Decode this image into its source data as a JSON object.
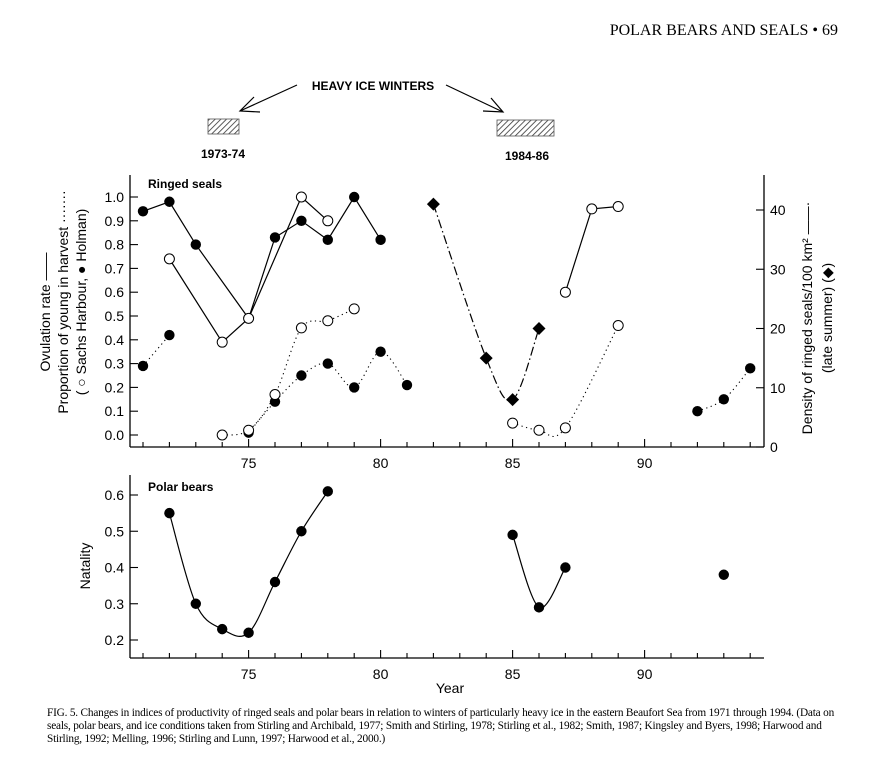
{
  "page_header": "POLAR BEARS AND SEALS • 69",
  "annotations": {
    "heavy_ice_label": "HEAVY ICE WINTERS",
    "periods": [
      {
        "label": "1973-74",
        "start": 73,
        "end": 74
      },
      {
        "label": "1984-86",
        "start": 84,
        "end": 86
      }
    ]
  },
  "caption": "FIG. 5. Changes in indices of productivity of ringed seals and polar bears in relation to winters of particularly heavy ice in the eastern Beaufort Sea from 1971 through 1994. (Data on seals, polar bears, and ice conditions taken from Stirling and Archibald, 1977; Smith and Stirling, 1978; Stirling et al., 1982; Smith, 1987; Kingsley and Byers, 1998; Harwood and Stirling, 1992; Melling, 1996; Stirling and Lunn, 1997; Harwood et al., 2000.)",
  "chart_data": [
    {
      "type": "line",
      "title": "Ringed seals",
      "xlabel": "",
      "ylabel_lines": [
        "Ovulation rate ——",
        "Proportion of young in harvest ·······",
        "( ○ Sachs Harbour, ● Holman)"
      ],
      "y2label_lines": [
        "Density of ringed seals/100 km² ——·",
        "(late summer)  (◆)"
      ],
      "xlim": [
        70.5,
        94.5
      ],
      "ylim": [
        -0.05,
        1.05
      ],
      "y2lim": [
        0,
        45
      ],
      "x_ticks": [
        75,
        80,
        85,
        90
      ],
      "y_ticks": [
        "0.0",
        "0.1",
        "0.2",
        "0.3",
        "0.4",
        "0.5",
        "0.6",
        "0.7",
        "0.8",
        "0.9",
        "1.0"
      ],
      "y2_ticks": [
        "0",
        "10",
        "20",
        "30",
        "40"
      ],
      "grid": false,
      "series": [
        {
          "name": "Ovulation rate (Holman)",
          "marker": "filled-circle",
          "style": "solid",
          "axis": "left",
          "segments": [
            [
              [
                71,
                0.94
              ],
              [
                72,
                0.98
              ],
              [
                73,
                0.8
              ],
              [
                75,
                0.49
              ],
              [
                76,
                0.83
              ],
              [
                77,
                0.9
              ],
              [
                78,
                0.82
              ],
              [
                79,
                1.0
              ],
              [
                80,
                0.82
              ]
            ]
          ]
        },
        {
          "name": "Ovulation rate (Sachs Harbour)",
          "marker": "open-circle",
          "style": "solid",
          "axis": "left",
          "segments": [
            [
              [
                72,
                0.74
              ],
              [
                74,
                0.39
              ],
              [
                75,
                0.49
              ],
              [
                77,
                1.0
              ],
              [
                78,
                0.9
              ]
            ],
            [
              [
                87,
                0.6
              ],
              [
                88,
                0.95
              ],
              [
                89,
                0.96
              ]
            ]
          ]
        },
        {
          "name": "Proportion of young in harvest (Holman)",
          "marker": "filled-circle",
          "style": "dotted",
          "axis": "left",
          "segments": [
            [
              [
                71,
                0.29
              ],
              [
                72,
                0.42
              ]
            ],
            [
              [
                75,
                0.01
              ],
              [
                76,
                0.14
              ],
              [
                77,
                0.25
              ],
              [
                78,
                0.3
              ],
              [
                79,
                0.2
              ],
              [
                80,
                0.35
              ],
              [
                81,
                0.21
              ]
            ],
            [
              [
                92,
                0.1
              ],
              [
                93,
                0.15
              ],
              [
                94,
                0.28
              ]
            ]
          ]
        },
        {
          "name": "Proportion of young in harvest (Sachs Harbour)",
          "marker": "open-circle",
          "style": "dotted",
          "axis": "left",
          "segments": [
            [
              [
                74,
                0.0
              ],
              [
                75,
                0.02
              ],
              [
                76,
                0.17
              ],
              [
                77,
                0.45
              ],
              [
                78,
                0.48
              ],
              [
                79,
                0.53
              ]
            ],
            [
              [
                85,
                0.05
              ],
              [
                86,
                0.02
              ],
              [
                87,
                0.03
              ],
              [
                89,
                0.46
              ]
            ]
          ]
        },
        {
          "name": "Density of ringed seals/100 km² (late summer)",
          "marker": "filled-diamond",
          "style": "dash-dot",
          "axis": "right",
          "segments": [
            [
              [
                82,
                41
              ],
              [
                84,
                15
              ],
              [
                85,
                8
              ],
              [
                86,
                20
              ]
            ]
          ]
        }
      ]
    },
    {
      "type": "line",
      "title": "Polar bears",
      "xlabel": "Year",
      "ylabel": "Natality",
      "xlim": [
        70.5,
        94.5
      ],
      "ylim": [
        0.15,
        0.65
      ],
      "x_ticks": [
        75,
        80,
        85,
        90
      ],
      "y_ticks": [
        "0.2",
        "0.3",
        "0.4",
        "0.5",
        "0.6"
      ],
      "grid": false,
      "series": [
        {
          "name": "Natality",
          "marker": "filled-circle",
          "style": "smooth",
          "segments": [
            [
              [
                72,
                0.55
              ],
              [
                73,
                0.3
              ],
              [
                74,
                0.23
              ],
              [
                75,
                0.22
              ],
              [
                76,
                0.36
              ],
              [
                77,
                0.5
              ],
              [
                78,
                0.61
              ]
            ],
            [
              [
                85,
                0.49
              ],
              [
                86,
                0.29
              ],
              [
                87,
                0.4
              ]
            ],
            [
              [
                93,
                0.38
              ]
            ]
          ]
        }
      ]
    }
  ]
}
